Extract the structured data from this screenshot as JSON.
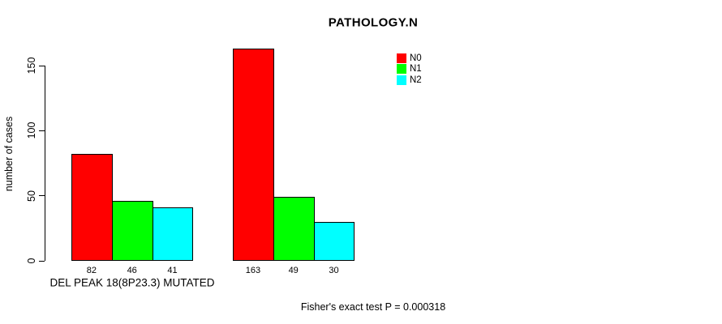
{
  "chart_data": {
    "type": "bar",
    "grouped": true,
    "title": "PATHOLOGY.N",
    "xlabel": "DEL PEAK 18(8P23.3) MUTATED",
    "ylabel": "number of cases",
    "yticks": [
      0,
      50,
      100,
      150
    ],
    "ylim": [
      0,
      170
    ],
    "grid": false,
    "show_bar_values": true,
    "series": [
      {
        "name": "N0",
        "color": "#ff0000",
        "values": [
          82,
          163
        ]
      },
      {
        "name": "N1",
        "color": "#00ff00",
        "values": [
          46,
          49
        ]
      },
      {
        "name": "N2",
        "color": "#00ffff",
        "values": [
          41,
          30
        ]
      }
    ],
    "legend": {
      "position": "top-right",
      "entries": [
        "N0",
        "N1",
        "N2"
      ]
    },
    "annotation": "Fisher's exact test P = 0.000318"
  }
}
